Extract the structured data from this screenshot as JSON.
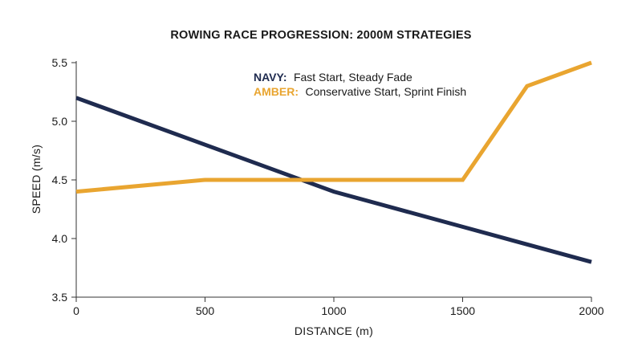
{
  "chart_data": {
    "type": "line",
    "title": "ROWING RACE PROGRESSION: 2000M STRATEGIES",
    "xlabel": "DISTANCE (m)",
    "ylabel": "SPEED (m/s)",
    "xlim": [
      0,
      2000
    ],
    "ylim": [
      3.5,
      5.5
    ],
    "xticks": [
      "0",
      "500",
      "1000",
      "1500",
      "2000"
    ],
    "yticks": [
      "3.5",
      "4.0",
      "4.5",
      "5.0",
      "5.5"
    ],
    "grid": false,
    "legend_position": "top-center",
    "series": [
      {
        "name": "NAVY:",
        "description": "Fast Start, Steady Fade",
        "color": "#1f2b4f",
        "x": [
          0,
          500,
          1000,
          1500,
          2000
        ],
        "y": [
          5.2,
          4.8,
          4.4,
          4.1,
          3.8
        ]
      },
      {
        "name": "AMBER:",
        "description": "Conservative Start, Sprint Finish",
        "color": "#e9a530",
        "x": [
          0,
          500,
          1000,
          1500,
          1750,
          2000
        ],
        "y": [
          4.4,
          4.5,
          4.5,
          4.5,
          5.3,
          5.5
        ]
      }
    ]
  }
}
